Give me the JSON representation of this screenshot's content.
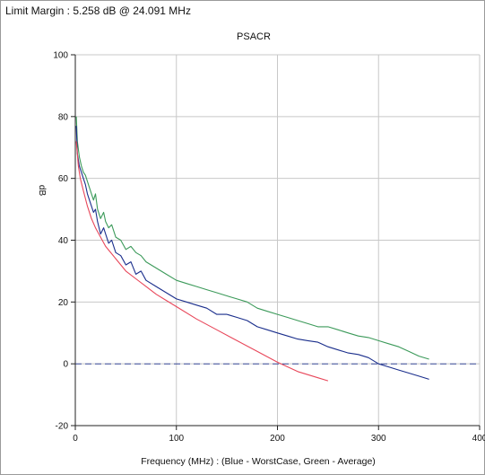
{
  "header": {
    "limit_margin": "Limit Margin : 5.258 dB @ 24.091 MHz"
  },
  "chart_data": {
    "type": "line",
    "title": "PSACR",
    "xlabel": "Frequency (MHz) : (Blue - WorstCase, Green - Average)",
    "ylabel": "dB",
    "xlim": [
      0,
      400
    ],
    "ylim": [
      -20,
      100
    ],
    "xticks": [
      0,
      100,
      200,
      300,
      400
    ],
    "yticks": [
      -20,
      0,
      20,
      40,
      60,
      80,
      100
    ],
    "grid": true,
    "colors": {
      "blue": "#1a2e8c",
      "green": "#3c9a5a",
      "red": "#e8475a",
      "reference": "#3a4a9a",
      "grid": "#c8c8c8"
    },
    "series": [
      {
        "color": "green",
        "x": [
          1,
          2,
          4,
          6,
          8,
          10,
          12,
          15,
          18,
          20,
          22,
          25,
          28,
          30,
          33,
          36,
          40,
          45,
          50,
          55,
          60,
          65,
          70,
          80,
          90,
          100,
          110,
          120,
          130,
          140,
          150,
          160,
          170,
          180,
          190,
          200,
          210,
          220,
          230,
          240,
          250,
          260,
          270,
          280,
          290,
          300,
          310,
          320,
          330,
          340,
          350
        ],
        "y": [
          80,
          72,
          67,
          64,
          62,
          61,
          59,
          56,
          53,
          55,
          50,
          47,
          49,
          46,
          44,
          45,
          41,
          40,
          37,
          38,
          36,
          35,
          33,
          31,
          29,
          27,
          26,
          25,
          24,
          23,
          22,
          21,
          20,
          18,
          17,
          16,
          15,
          14,
          13,
          12,
          12,
          11,
          10,
          9,
          8.5,
          7.5,
          6.5,
          5.5,
          4,
          2.5,
          1.5
        ]
      },
      {
        "color": "blue",
        "x": [
          1,
          2,
          4,
          6,
          8,
          10,
          12,
          15,
          18,
          20,
          22,
          25,
          28,
          30,
          33,
          36,
          40,
          45,
          50,
          55,
          60,
          65,
          70,
          80,
          90,
          100,
          110,
          120,
          130,
          140,
          150,
          160,
          170,
          180,
          190,
          200,
          210,
          220,
          230,
          240,
          250,
          260,
          270,
          280,
          290,
          300,
          310,
          320,
          330,
          340,
          350
        ],
        "y": [
          77,
          68,
          64,
          62,
          60,
          58,
          55,
          52,
          49,
          50,
          46,
          42,
          44,
          42,
          39,
          40,
          36,
          35,
          32,
          33,
          29,
          30,
          27,
          25,
          23,
          21,
          20,
          19,
          18,
          16,
          16,
          15,
          14,
          12,
          11,
          10,
          9,
          8,
          7.5,
          7,
          5.5,
          4.5,
          3.5,
          3,
          2,
          0,
          -1,
          -2,
          -3,
          -4,
          -5
        ]
      },
      {
        "color": "red",
        "x": [
          1,
          3,
          5,
          8,
          12,
          16,
          20,
          25,
          30,
          40,
          50,
          60,
          70,
          80,
          90,
          100,
          120,
          140,
          160,
          180,
          200,
          220,
          240,
          250
        ],
        "y": [
          72,
          64,
          60,
          56,
          51,
          47,
          44,
          41,
          38,
          34,
          30,
          27.5,
          25,
          22.5,
          20.5,
          18.5,
          14.5,
          11,
          7.5,
          4,
          0.5,
          -2.5,
          -4.5,
          -5.5
        ]
      },
      {
        "color": "reference",
        "x": [
          0,
          400
        ],
        "y": [
          0,
          0
        ]
      }
    ]
  }
}
